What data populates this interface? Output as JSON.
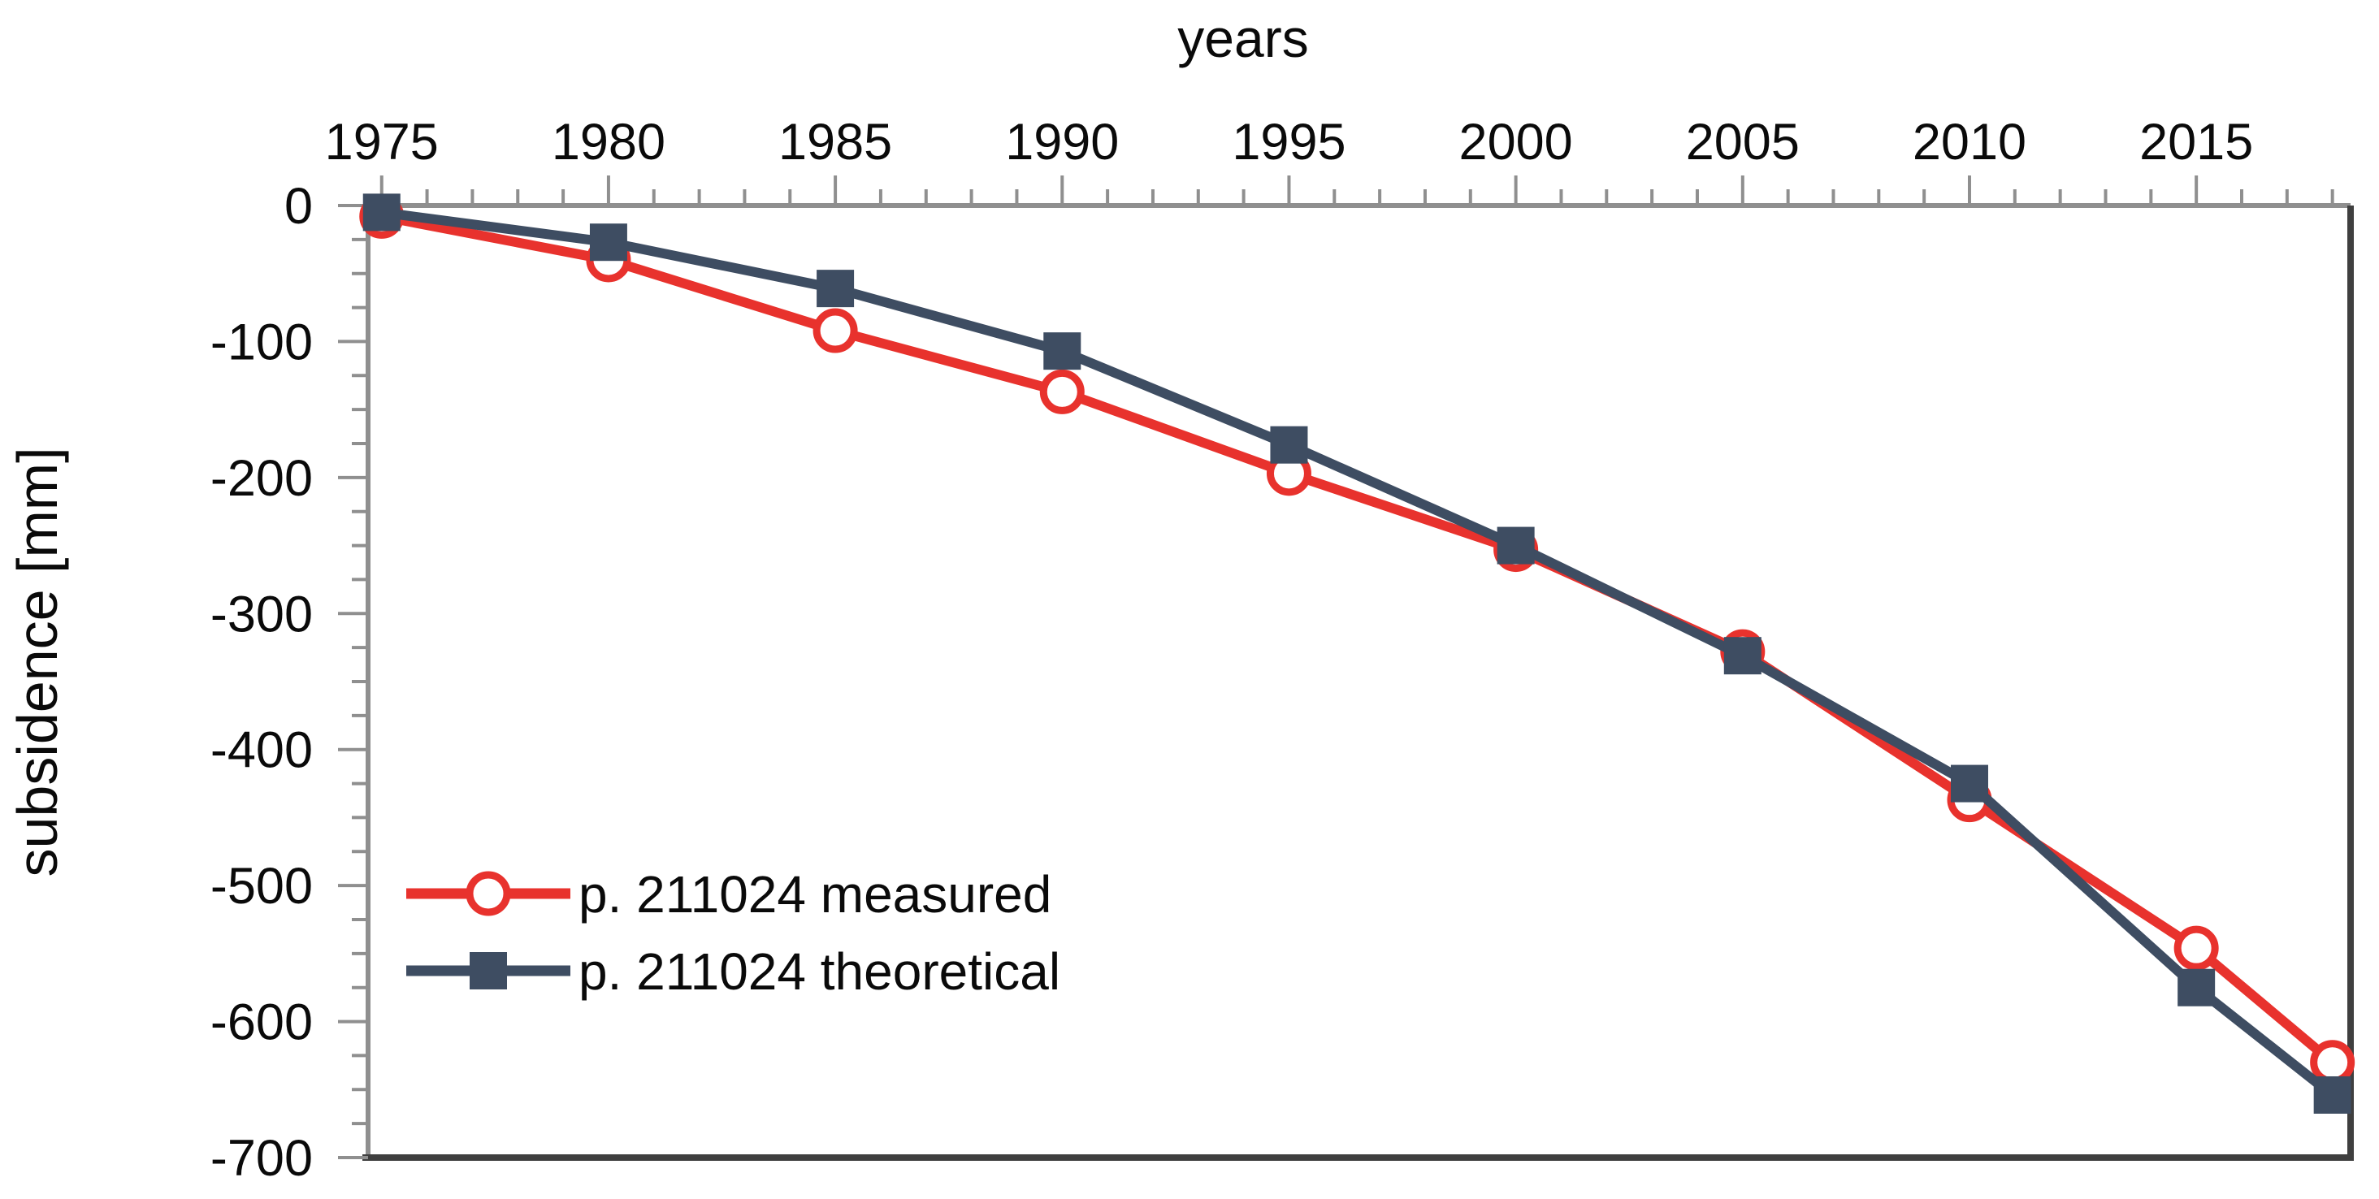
{
  "chart_data": {
    "type": "line",
    "title": "years",
    "xlabel": "years",
    "ylabel": "subsidence [mm]",
    "x_axis_position": "top",
    "grid": false,
    "legend_position": "inside-left",
    "xlim": [
      1974.7,
      2018.4
    ],
    "ylim": [
      0,
      -700
    ],
    "x_ticks_major": [
      1975,
      1980,
      1985,
      1990,
      1995,
      2000,
      2005,
      2010,
      2015
    ],
    "x_minor_tick_step_years": 1,
    "y_ticks_major": [
      0,
      -100,
      -200,
      -300,
      -400,
      -500,
      -600,
      -700
    ],
    "y_minor_tick_step_mm": 25,
    "x": [
      1975,
      1980,
      1985,
      1990,
      1995,
      2000,
      2005,
      2010,
      2015,
      2018
    ],
    "series": [
      {
        "name": "p. 211024 measured",
        "marker": "open-circle",
        "color": "#e8322d",
        "values": [
          -8,
          -40,
          -92,
          -137,
          -197,
          -253,
          -328,
          -437,
          -546,
          -630
        ]
      },
      {
        "name": "p. 211024 theoretical",
        "marker": "filled-square",
        "color": "#3e4d62",
        "values": [
          -5,
          -27,
          -61,
          -107,
          -176,
          -250,
          -331,
          -425,
          -575,
          -654
        ]
      }
    ],
    "axis_colors": {
      "top_left_axis": "#8f8f8f",
      "bottom_right_border": "#3f3f3f"
    },
    "text_color": "#0a0a0a",
    "background_color": "#ffffff"
  }
}
